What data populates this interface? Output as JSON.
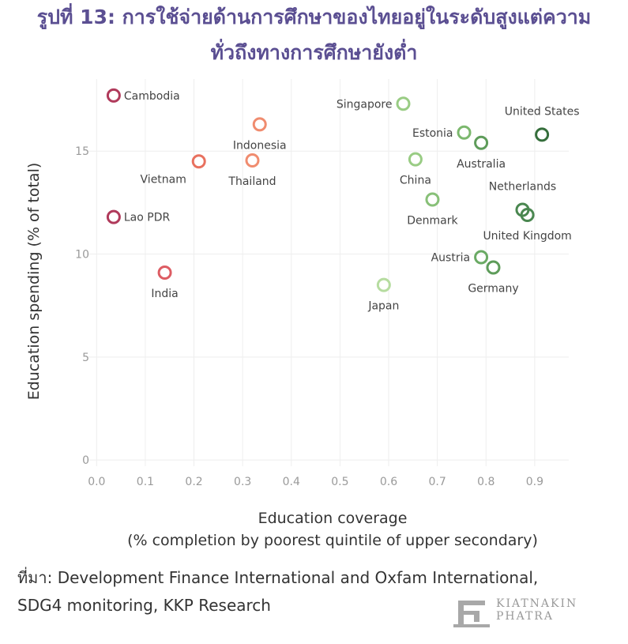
{
  "title_line1": "รูปที่ 13: การใช้จ่ายด้านการศึกษาของไทยอยู่ในระดับสูงแต่ความ",
  "title_line2": "ทั่วถึงทางการศึกษายังต่ำ",
  "source_line1": "ที่มา: Development Finance International and Oxfam International,",
  "source_line2": "SDG4 monitoring, KKP Research",
  "logo": {
    "line1": "KIATNAKIN",
    "line2": "PHATRA",
    "icon": "kkp-logo-icon"
  },
  "chart_data": {
    "type": "scatter",
    "xlabel_line1": "Education coverage",
    "xlabel_line2": "(% completion by poorest quintile of upper secondary)",
    "ylabel": "Education spending (% of total)",
    "xlim": [
      -0.02,
      0.97
    ],
    "ylim": [
      -0.3,
      18.5
    ],
    "xticks": [
      0.0,
      0.1,
      0.2,
      0.3,
      0.4,
      0.5,
      0.6,
      0.7,
      0.8,
      0.9
    ],
    "xtick_labels": [
      "0.0",
      "0.1",
      "0.2",
      "0.3",
      "0.4",
      "0.5",
      "0.6",
      "0.7",
      "0.8",
      "0.9"
    ],
    "yticks": [
      0,
      5,
      10,
      15
    ],
    "ytick_labels": [
      "0",
      "5",
      "10",
      "15"
    ],
    "grid": true,
    "marker": "hollow-circle",
    "points": [
      {
        "label": "Cambodia",
        "x": 0.035,
        "y": 17.7,
        "color": "#b03a5b",
        "label_pos": "right"
      },
      {
        "label": "Lao PDR",
        "x": 0.035,
        "y": 11.8,
        "color": "#b03a5b",
        "label_pos": "right"
      },
      {
        "label": "India",
        "x": 0.14,
        "y": 9.1,
        "color": "#dd5c63",
        "label_pos": "below"
      },
      {
        "label": "Vietnam",
        "x": 0.21,
        "y": 14.5,
        "color": "#e8715f",
        "label_pos": "below-left"
      },
      {
        "label": "Thailand",
        "x": 0.32,
        "y": 14.55,
        "color": "#f08c6f",
        "label_pos": "below"
      },
      {
        "label": "Indonesia",
        "x": 0.335,
        "y": 16.3,
        "color": "#f08c6f",
        "label_pos": "below"
      },
      {
        "label": "Singapore",
        "x": 0.63,
        "y": 17.3,
        "color": "#99cc84",
        "label_pos": "left"
      },
      {
        "label": "Japan",
        "x": 0.59,
        "y": 8.5,
        "color": "#b6dca0",
        "label_pos": "below"
      },
      {
        "label": "China",
        "x": 0.655,
        "y": 14.6,
        "color": "#99cc84",
        "label_pos": "below"
      },
      {
        "label": "Denmark",
        "x": 0.69,
        "y": 12.65,
        "color": "#88c078",
        "label_pos": "below"
      },
      {
        "label": "Estonia",
        "x": 0.755,
        "y": 15.9,
        "color": "#7cb86e",
        "label_pos": "left"
      },
      {
        "label": "Australia",
        "x": 0.79,
        "y": 15.4,
        "color": "#5e9c5a",
        "label_pos": "below"
      },
      {
        "label": "Austria",
        "x": 0.79,
        "y": 9.85,
        "color": "#6aaa64",
        "label_pos": "left"
      },
      {
        "label": "Germany",
        "x": 0.815,
        "y": 9.35,
        "color": "#5e9c5a",
        "label_pos": "below"
      },
      {
        "label": "United States",
        "x": 0.915,
        "y": 15.8,
        "color": "#356e3b",
        "label_pos": "above"
      },
      {
        "label": "Netherlands",
        "x": 0.875,
        "y": 12.15,
        "color": "#4a8750",
        "label_pos": "above"
      },
      {
        "label": "United Kingdom",
        "x": 0.885,
        "y": 11.9,
        "color": "#4a8750",
        "label_pos": "below"
      }
    ]
  }
}
